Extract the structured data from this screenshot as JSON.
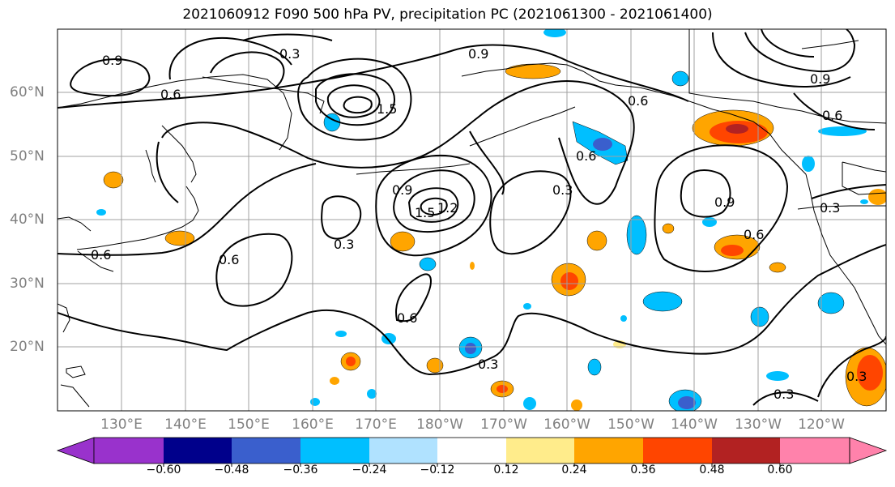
{
  "title": "2021060912 F090 500 hPa PV, precipitation PC (2021061300 - 2021061400)",
  "lat_labels": [
    "60°N",
    "50°N",
    "40°N",
    "30°N",
    "20°N"
  ],
  "lon_labels": [
    "130°E",
    "140°E",
    "150°E",
    "160°E",
    "170°E",
    "180°W",
    "170°W",
    "160°W",
    "150°W",
    "140°W",
    "130°W",
    "120°W"
  ],
  "contour_labels": [
    "0.9",
    "0.3",
    "0.6",
    "0.9",
    "1.5",
    "0.6",
    "0.6",
    "0.9",
    "0.6",
    "0.9",
    "1.5",
    "1.2",
    "0.3",
    "0.3",
    "0.6",
    "0.6",
    "0.6",
    "0.3",
    "0.9",
    "0.6",
    "0.3",
    "0.3",
    "0.3"
  ],
  "colorbar": {
    "ticks": [
      "−0.60",
      "−0.48",
      "−0.36",
      "−0.24",
      "−0.12",
      "0.12",
      "0.24",
      "0.36",
      "0.48",
      "0.60"
    ],
    "colors": [
      "#9932cc",
      "#00008b",
      "#3a5fcd",
      "#00bfff",
      "#b0e2ff",
      "#ffffff",
      "#ffec8b",
      "#ffa500",
      "#ff4500",
      "#b22222",
      "#ff82ab"
    ]
  },
  "colors": {
    "orange": "#ffa500",
    "yellow": "#ffec8b",
    "red": "#ff4500",
    "darkred": "#b22222",
    "blue": "#00bfff",
    "lightblue": "#b0e2ff",
    "royal": "#3a5fcd"
  }
}
